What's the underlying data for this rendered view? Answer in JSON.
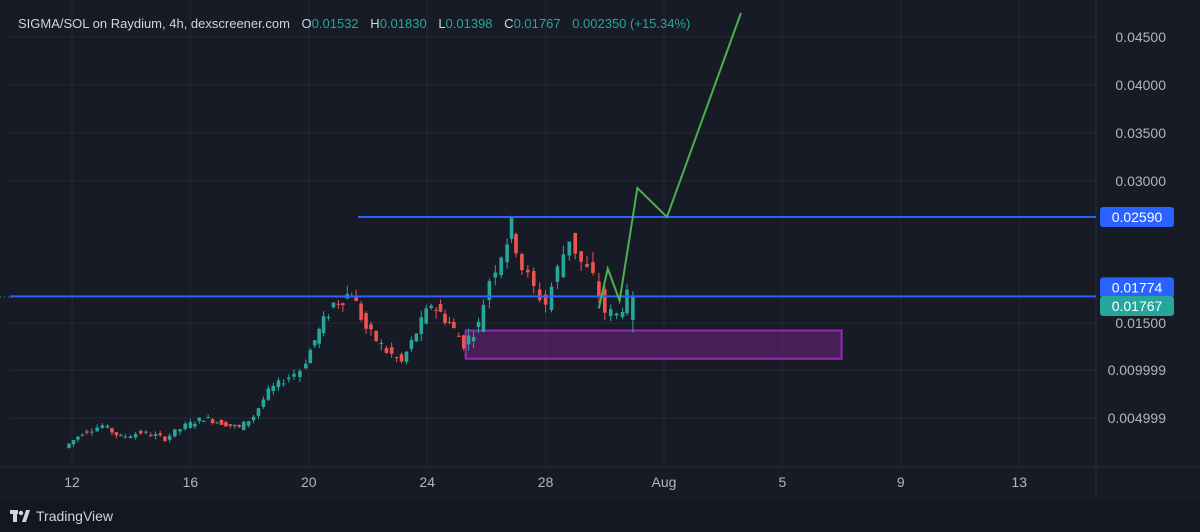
{
  "header": {
    "pair": "SIGMA/SOL on Raydium, 4h, dexscreener.com",
    "o_label": "O",
    "o_value": "0.01532",
    "h_label": "H",
    "h_value": "0.01830",
    "l_label": "L",
    "l_value": "0.01398",
    "c_label": "C",
    "c_value": "0.01767",
    "change": "0.002350 (+15.34%)"
  },
  "footer": {
    "brand": "TradingView"
  },
  "colors": {
    "background": "#171b26",
    "up": "#26a69a",
    "down": "#ef5350",
    "level_line": "#2962ff",
    "projection": "#4caf50",
    "zone": "#9c27b0"
  },
  "chart_data": {
    "type": "candlestick",
    "title": "SIGMA/SOL on Raydium, 4h, dexscreener.com",
    "x_ticks": [
      "12",
      "16",
      "20",
      "24",
      "28",
      "Aug",
      "5",
      "9",
      "13"
    ],
    "y_ticks": [
      "0.004999",
      "0.009999",
      "0.01500",
      "0.03000",
      "0.03500",
      "0.04000",
      "0.04500"
    ],
    "y_range": [
      0.0,
      0.048
    ],
    "price_labels": [
      {
        "text": "0.02590",
        "value": 0.0259,
        "color": "#2962ff"
      },
      {
        "text": "0.01774",
        "value": 0.01774,
        "color": "#2962ff"
      },
      {
        "text": "0.01767",
        "value": 0.01767,
        "color": "#26a69a"
      }
    ],
    "horizontal_levels": [
      0.0259,
      0.01774
    ],
    "support_zone": {
      "low": 0.0112,
      "high": 0.0142,
      "from_day": 25.3,
      "to_day": 38.0
    },
    "projection_path": [
      {
        "day": 29.8,
        "price": 0.0165
      },
      {
        "day": 30.1,
        "price": 0.0206
      },
      {
        "day": 30.5,
        "price": 0.0173
      },
      {
        "day": 31.1,
        "price": 0.0292
      },
      {
        "day": 32.1,
        "price": 0.0259
      },
      {
        "day": 34.6,
        "price": 0.0475
      }
    ],
    "candles_seed": [
      [
        11.9,
        0.0019
      ],
      [
        12.5,
        0.0035
      ],
      [
        13.2,
        0.0042
      ],
      [
        13.8,
        0.003
      ],
      [
        14.5,
        0.0035
      ],
      [
        15.3,
        0.0029
      ],
      [
        16.0,
        0.0042
      ],
      [
        16.6,
        0.005
      ],
      [
        17.2,
        0.0045
      ],
      [
        17.8,
        0.004
      ],
      [
        18.3,
        0.0052
      ],
      [
        18.8,
        0.0078
      ],
      [
        19.5,
        0.0093
      ],
      [
        19.9,
        0.01
      ],
      [
        20.5,
        0.0142
      ],
      [
        21.0,
        0.017
      ],
      [
        21.6,
        0.0182
      ],
      [
        22.1,
        0.0144
      ],
      [
        22.8,
        0.012
      ],
      [
        23.3,
        0.0108
      ],
      [
        23.8,
        0.014
      ],
      [
        24.3,
        0.017
      ],
      [
        24.9,
        0.015
      ],
      [
        25.4,
        0.0128
      ],
      [
        25.9,
        0.0148
      ],
      [
        26.3,
        0.0195
      ],
      [
        26.7,
        0.0222
      ],
      [
        27.0,
        0.025
      ],
      [
        27.4,
        0.0208
      ],
      [
        27.8,
        0.0185
      ],
      [
        28.2,
        0.017
      ],
      [
        28.6,
        0.0205
      ],
      [
        29.0,
        0.0238
      ],
      [
        29.4,
        0.0212
      ],
      [
        29.8,
        0.0196
      ],
      [
        30.2,
        0.0162
      ],
      [
        30.6,
        0.0158
      ],
      [
        30.9,
        0.0177
      ]
    ]
  }
}
